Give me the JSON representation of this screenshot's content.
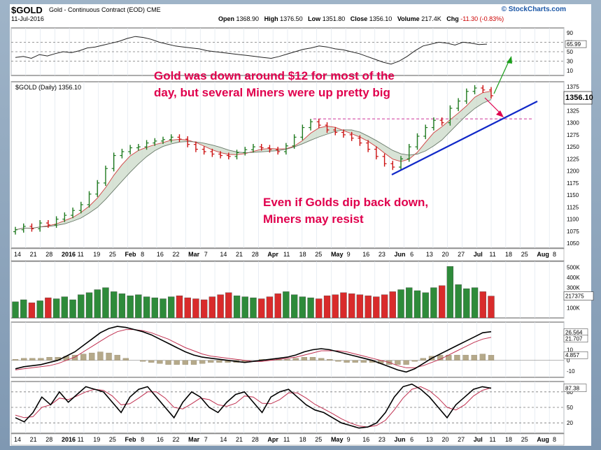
{
  "header": {
    "symbol": "$GOLD",
    "name": "Gold - Continuous Contract (EOD)",
    "exchange": "CME",
    "date": "11-Jul-2016",
    "source": "© StockCharts.com",
    "open_label": "Open",
    "open": "1368.90",
    "high_label": "High",
    "high": "1376.50",
    "low_label": "Low",
    "low": "1351.80",
    "close_label": "Close",
    "close": "1356.10",
    "volume_label": "Volume",
    "volume": "217.4K",
    "chg_label": "Chg",
    "chg": "-11.30 (-0.83%)"
  },
  "price_panel": {
    "legend": "$GOLD (Daily) 1356.10",
    "last_value": "1356.10"
  },
  "annotations": {
    "top": [
      "Gold was down around $12 for most of the",
      "day, but several Miners were up pretty big"
    ],
    "middle": [
      "Even if Golds dip back down,",
      "Miners may resist"
    ]
  },
  "colors": {
    "up": "#1f7a1f",
    "down": "#cc1111",
    "annotation": "#e0004d",
    "trend": "#1028c8",
    "arrow_up": "#1a9e1a",
    "arrow_down": "#e0004d"
  },
  "chart_data": [
    {
      "type": "line",
      "panel": "RSI(14)",
      "y_ticks": [
        "90",
        "70",
        "50",
        "30",
        "10"
      ],
      "ylim": [
        0,
        100
      ],
      "last_value": "65.99",
      "values": [
        38,
        40,
        36,
        44,
        41,
        46,
        50,
        48,
        52,
        58,
        60,
        64,
        68,
        72,
        78,
        82,
        80,
        76,
        70,
        66,
        62,
        60,
        58,
        56,
        52,
        50,
        48,
        46,
        44,
        42,
        40,
        38,
        36,
        40,
        45,
        50,
        55,
        58,
        62,
        60,
        56,
        54,
        50,
        46,
        40,
        34,
        28,
        24,
        30,
        40,
        52,
        62,
        66,
        70,
        68,
        64,
        70,
        68,
        65,
        66
      ]
    },
    {
      "type": "candlestick",
      "panel": "Price",
      "y_ticks": [
        "1375",
        "1350",
        "1325",
        "1300",
        "1275",
        "1250",
        "1225",
        "1200",
        "1175",
        "1150",
        "1125",
        "1100",
        "1075",
        "1050"
      ],
      "ylim": [
        1040,
        1385
      ],
      "x_labels": [
        "14",
        "21",
        "28",
        "2016",
        "11",
        "19",
        "25",
        "Feb",
        "8",
        "16",
        "22",
        "Mar",
        "7",
        "14",
        "21",
        "28",
        "Apr",
        "11",
        "18",
        "25",
        "May",
        "9",
        "16",
        "23",
        "Jun",
        "6",
        "13",
        "20",
        "27",
        "Jul",
        "11",
        "18",
        "25",
        "Aug",
        "8"
      ],
      "closes": [
        1078,
        1085,
        1080,
        1092,
        1088,
        1100,
        1108,
        1118,
        1130,
        1152,
        1175,
        1205,
        1232,
        1240,
        1248,
        1250,
        1258,
        1262,
        1265,
        1270,
        1266,
        1255,
        1245,
        1240,
        1235,
        1232,
        1230,
        1238,
        1244,
        1250,
        1248,
        1244,
        1240,
        1252,
        1270,
        1290,
        1302,
        1295,
        1285,
        1280,
        1275,
        1268,
        1258,
        1245,
        1230,
        1215,
        1208,
        1225,
        1250,
        1272,
        1290,
        1305,
        1300,
        1330,
        1345,
        1365,
        1372,
        1368,
        1356
      ],
      "sma_50_last": "1321.25",
      "sma_200_last": "1357.10"
    },
    {
      "type": "bar",
      "panel": "Volume",
      "y_ticks": [
        "500K",
        "400K",
        "300K",
        "200K",
        "100K"
      ],
      "last_value": "217375",
      "values": [
        160,
        180,
        150,
        170,
        200,
        190,
        210,
        180,
        230,
        250,
        280,
        300,
        260,
        240,
        220,
        230,
        210,
        200,
        190,
        210,
        220,
        200,
        190,
        180,
        210,
        230,
        250,
        220,
        210,
        200,
        190,
        210,
        240,
        260,
        230,
        210,
        200,
        190,
        220,
        230,
        250,
        240,
        230,
        220,
        210,
        230,
        260,
        280,
        300,
        270,
        250,
        300,
        320,
        510,
        330,
        290,
        300,
        260,
        217
      ]
    },
    {
      "type": "line",
      "panel": "MACD(12,26,9)",
      "y_ticks": [
        "20",
        "10",
        "0",
        "-10"
      ],
      "last_values": [
        "26.564",
        "21.707",
        "4.857"
      ],
      "macd": [
        -8,
        -6,
        -5,
        -4,
        -2,
        0,
        4,
        8,
        14,
        20,
        26,
        30,
        32,
        31,
        29,
        27,
        24,
        20,
        16,
        12,
        8,
        5,
        3,
        2,
        1,
        0,
        -1,
        -2,
        -1,
        0,
        1,
        2,
        3,
        5,
        8,
        10,
        11,
        10,
        8,
        6,
        4,
        2,
        0,
        -3,
        -6,
        -9,
        -11,
        -8,
        -3,
        2,
        6,
        10,
        14,
        18,
        22,
        26,
        27
      ],
      "signal": [
        -9,
        -8,
        -7,
        -6,
        -5,
        -3,
        0,
        3,
        8,
        13,
        18,
        23,
        27,
        29,
        29,
        28,
        26,
        23,
        20,
        16,
        12,
        9,
        6,
        4,
        3,
        2,
        1,
        0,
        -1,
        -1,
        0,
        1,
        2,
        3,
        5,
        7,
        9,
        9,
        9,
        8,
        6,
        4,
        2,
        0,
        -2,
        -5,
        -7,
        -7,
        -5,
        -2,
        1,
        5,
        9,
        13,
        17,
        20,
        21.7
      ],
      "histogram": [
        1,
        2,
        2,
        2,
        3,
        3,
        4,
        5,
        6,
        7,
        8,
        7,
        5,
        2,
        0,
        -1,
        -2,
        -3,
        -4,
        -4,
        -4,
        -4,
        -3,
        -2,
        -2,
        -2,
        -2,
        -2,
        0,
        1,
        1,
        1,
        1,
        2,
        3,
        3,
        2,
        1,
        -1,
        -2,
        -2,
        -2,
        -2,
        -3,
        -4,
        -4,
        -4,
        -1,
        2,
        4,
        5,
        5,
        5,
        5,
        5,
        6,
        4.9
      ]
    },
    {
      "type": "line",
      "panel": "Slow Stochastic",
      "y_ticks": [
        "80",
        "50",
        "20"
      ],
      "last_value": "87.38",
      "k": [
        30,
        22,
        40,
        70,
        55,
        80,
        60,
        75,
        90,
        85,
        80,
        60,
        40,
        70,
        85,
        90,
        70,
        50,
        30,
        60,
        80,
        70,
        50,
        40,
        60,
        75,
        80,
        60,
        40,
        70,
        80,
        85,
        70,
        55,
        45,
        40,
        30,
        20,
        15,
        10,
        12,
        20,
        40,
        70,
        90,
        95,
        85,
        70,
        50,
        30,
        55,
        70,
        85,
        90,
        87
      ],
      "d": [
        35,
        30,
        32,
        50,
        55,
        68,
        65,
        72,
        80,
        85,
        83,
        72,
        55,
        57,
        68,
        80,
        80,
        68,
        50,
        47,
        57,
        68,
        65,
        55,
        52,
        58,
        72,
        70,
        58,
        57,
        65,
        78,
        78,
        68,
        56,
        47,
        38,
        28,
        20,
        14,
        12,
        15,
        25,
        45,
        68,
        85,
        90,
        82,
        68,
        50,
        45,
        55,
        72,
        83,
        88
      ]
    }
  ]
}
